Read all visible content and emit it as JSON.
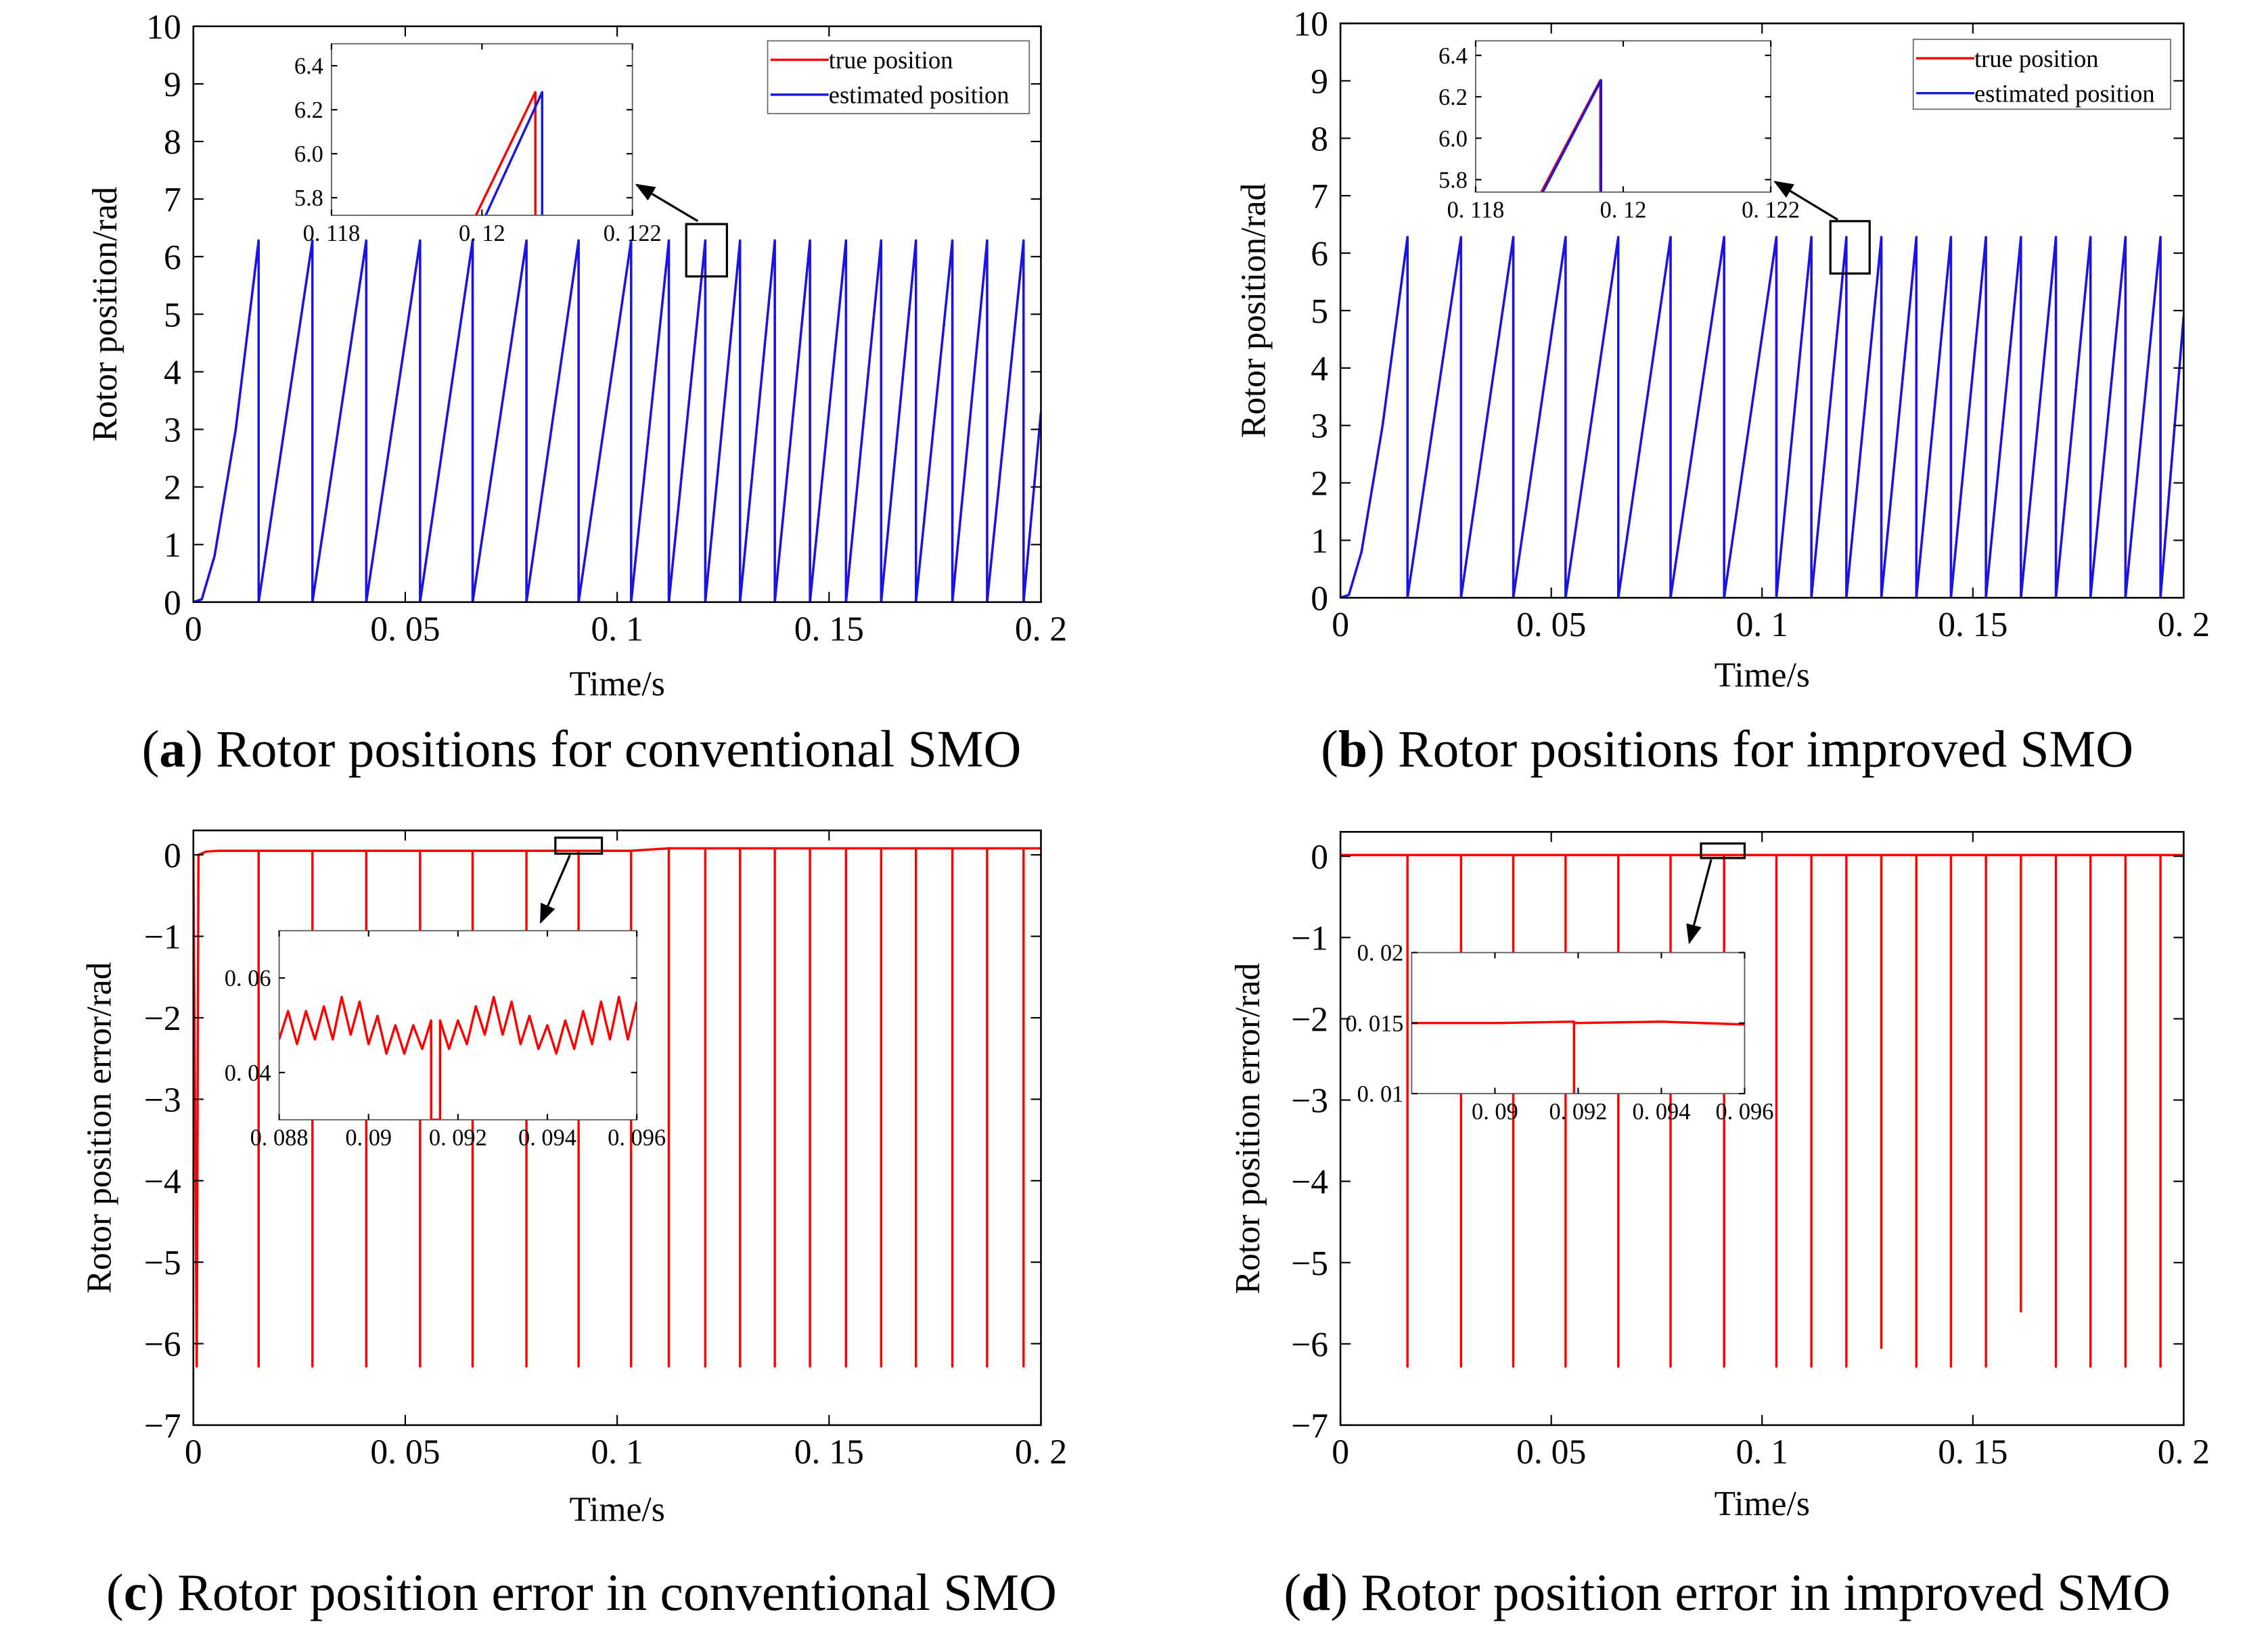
{
  "chart_data": [
    {
      "type": "line",
      "caption_parts": [
        "(",
        "a",
        ") Rotor positions for conventional SMO"
      ],
      "xlabel": "Time/s",
      "ylabel": "Rotor position/rad",
      "xlim": [
        0,
        0.2
      ],
      "ylim": [
        0,
        10
      ],
      "xticks": [
        0,
        {
          "value": 0.05,
          "label": "0. 05"
        },
        {
          "value": 0.1,
          "label": "0. 1"
        },
        {
          "value": 0.15,
          "label": "0. 15"
        },
        {
          "value": 0.2,
          "label": "0. 2"
        }
      ],
      "yticks": [
        0,
        1,
        2,
        3,
        4,
        5,
        6,
        7,
        8,
        9,
        10
      ],
      "legend": "upper right",
      "x": [
        0,
        0.002,
        0.005,
        0.01,
        0.0154,
        0.0154,
        0.0281,
        0.0281,
        0.0408,
        0.0408,
        0.0535,
        0.0535,
        0.0659,
        0.0659,
        0.0786,
        0.0786,
        0.0909,
        0.0909,
        0.1033,
        0.1033,
        0.1122,
        0.1122,
        0.1208,
        0.1208,
        0.129,
        0.129,
        0.1372,
        0.1372,
        0.1455,
        0.1455,
        0.154,
        0.154,
        0.1623,
        0.1623,
        0.1705,
        0.1705,
        0.1791,
        0.1791,
        0.1873,
        0.1873,
        0.1959,
        0.1959,
        0.2
      ],
      "series": [
        {
          "name": "true position",
          "color": "#ff0000",
          "values": [
            0,
            0.05,
            0.8,
            3.0,
            6.28,
            0,
            6.28,
            0,
            6.28,
            0,
            6.28,
            0,
            6.28,
            0,
            6.28,
            0,
            6.28,
            0,
            6.28,
            0,
            6.28,
            0,
            6.28,
            0,
            6.28,
            0,
            6.28,
            0,
            6.28,
            0,
            6.28,
            0,
            6.28,
            0,
            6.28,
            0,
            6.28,
            0,
            6.28,
            0,
            6.28,
            0,
            3.3
          ]
        },
        {
          "name": "estimated position",
          "color": "#1515e6",
          "values": [
            0,
            0.05,
            0.8,
            3.0,
            6.28,
            0,
            6.28,
            0,
            6.28,
            0,
            6.28,
            0,
            6.28,
            0,
            6.28,
            0,
            6.28,
            0,
            6.28,
            0,
            6.28,
            0,
            6.28,
            0,
            6.28,
            0,
            6.28,
            0,
            6.28,
            0,
            6.28,
            0,
            6.28,
            0,
            6.28,
            0,
            6.28,
            0,
            6.28,
            0,
            6.28,
            0,
            3.3
          ]
        }
      ],
      "inset": {
        "xlim": [
          0.118,
          0.122
        ],
        "ylim": [
          5.72,
          6.5
        ],
        "xticks": [
          {
            "value": 0.118,
            "label": "0. 118"
          },
          {
            "value": 0.12,
            "label": "0. 12"
          },
          {
            "value": 0.122,
            "label": "0. 122"
          }
        ],
        "yticks": [
          5.8,
          {
            "value": 6.0,
            "label": "6.0"
          },
          6.2,
          6.4
        ],
        "series": [
          {
            "color": "#ff0000",
            "x": [
              0.11992,
              0.12071,
              0.12071
            ],
            "values": [
              5.72,
              6.28,
              5.72
            ]
          },
          {
            "color": "#1515e6",
            "x": [
              0.12005,
              0.1208,
              0.1208
            ],
            "values": [
              5.72,
              6.28,
              5.72
            ]
          }
        ]
      }
    },
    {
      "type": "line",
      "caption_parts": [
        "(",
        "b",
        ") Rotor positions for improved SMO"
      ],
      "xlabel": "Time/s",
      "ylabel": "Rotor position/rad",
      "xlim": [
        0,
        0.2
      ],
      "ylim": [
        0,
        10
      ],
      "xticks": [
        0,
        {
          "value": 0.05,
          "label": "0. 05"
        },
        {
          "value": 0.1,
          "label": "0. 1"
        },
        {
          "value": 0.15,
          "label": "0. 15"
        },
        {
          "value": 0.2,
          "label": "0. 2"
        }
      ],
      "yticks": [
        0,
        1,
        2,
        3,
        4,
        5,
        6,
        7,
        8,
        9,
        10
      ],
      "legend": "upper right",
      "x": [
        0,
        0.002,
        0.005,
        0.01,
        0.0159,
        0.0159,
        0.0286,
        0.0286,
        0.041,
        0.041,
        0.0534,
        0.0534,
        0.0659,
        0.0659,
        0.0783,
        0.0783,
        0.091,
        0.091,
        0.1034,
        0.1034,
        0.1117,
        0.1117,
        0.12,
        0.12,
        0.1283,
        0.1283,
        0.1366,
        0.1366,
        0.1448,
        0.1448,
        0.1531,
        0.1531,
        0.1614,
        0.1614,
        0.1697,
        0.1697,
        0.1779,
        0.1779,
        0.1862,
        0.1862,
        0.1945,
        0.1945,
        0.2
      ],
      "series": [
        {
          "name": "true position",
          "color": "#ff0000",
          "values": [
            0,
            0.05,
            0.8,
            3.0,
            6.28,
            0,
            6.28,
            0,
            6.28,
            0,
            6.28,
            0,
            6.28,
            0,
            6.28,
            0,
            6.28,
            0,
            6.28,
            0,
            6.28,
            0,
            6.28,
            0,
            6.28,
            0,
            6.28,
            0,
            6.28,
            0,
            6.28,
            0,
            6.28,
            0,
            6.28,
            0,
            6.28,
            0,
            6.28,
            0,
            6.28,
            0,
            4.9
          ]
        },
        {
          "name": "estimated position",
          "color": "#1515e6",
          "values": [
            0,
            0.05,
            0.8,
            3.0,
            6.28,
            0,
            6.28,
            0,
            6.28,
            0,
            6.28,
            0,
            6.28,
            0,
            6.28,
            0,
            6.28,
            0,
            6.28,
            0,
            6.28,
            0,
            6.28,
            0,
            6.28,
            0,
            6.28,
            0,
            6.28,
            0,
            6.28,
            0,
            6.28,
            0,
            6.28,
            0,
            6.28,
            0,
            6.28,
            0,
            6.28,
            0,
            4.9
          ]
        }
      ],
      "inset": {
        "xlim": [
          0.118,
          0.122
        ],
        "ylim": [
          5.74,
          6.47
        ],
        "xticks": [
          {
            "value": 0.118,
            "label": "0. 118"
          },
          {
            "value": 0.12,
            "label": "0. 12"
          },
          {
            "value": 0.122,
            "label": "0. 122"
          }
        ],
        "yticks": [
          5.8,
          {
            "value": 6.0,
            "label": "6.0"
          },
          6.2,
          6.4
        ],
        "series": [
          {
            "color": "#ff0000",
            "x": [
              0.11889,
              0.11969,
              0.11969
            ],
            "values": [
              5.74,
              6.28,
              5.74
            ]
          },
          {
            "color": "#1515e6",
            "x": [
              0.11891,
              0.1197,
              0.1197
            ],
            "values": [
              5.74,
              6.28,
              5.74
            ]
          }
        ]
      }
    },
    {
      "type": "line",
      "caption_parts": [
        "(",
        "c",
        ") Rotor position error in conventional SMO"
      ],
      "xlabel": "Time/s",
      "ylabel": "Rotor position error/rad",
      "xlim": [
        0,
        0.2
      ],
      "ylim": [
        -7,
        0.3
      ],
      "xticks": [
        0,
        {
          "value": 0.05,
          "label": "0. 05"
        },
        {
          "value": 0.1,
          "label": "0. 1"
        },
        {
          "value": 0.15,
          "label": "0. 15"
        },
        {
          "value": 0.2,
          "label": "0. 2"
        }
      ],
      "yticks": [
        0,
        {
          "value": -1,
          "label": "−1"
        },
        {
          "value": -2,
          "label": "−2"
        },
        {
          "value": -3,
          "label": "−3"
        },
        {
          "value": -4,
          "label": "−4"
        },
        {
          "value": -5,
          "label": "−5"
        },
        {
          "value": -6,
          "label": "−6"
        },
        {
          "value": -7,
          "label": "−7"
        }
      ],
      "x": [
        0,
        0.0008,
        0.0012,
        0.003,
        0.006,
        0.0154,
        0.0154,
        0.0154,
        0.0281,
        0.0281,
        0.0281,
        0.0408,
        0.0408,
        0.0408,
        0.0535,
        0.0535,
        0.0535,
        0.0659,
        0.0659,
        0.0659,
        0.0786,
        0.0786,
        0.0786,
        0.0909,
        0.0909,
        0.0909,
        0.1033,
        0.1033,
        0.1033,
        0.1122,
        0.1122,
        0.1122,
        0.1208,
        0.1208,
        0.1208,
        0.129,
        0.129,
        0.129,
        0.1372,
        0.1372,
        0.1372,
        0.1455,
        0.1455,
        0.1455,
        0.154,
        0.154,
        0.154,
        0.1623,
        0.1623,
        0.1623,
        0.1705,
        0.1705,
        0.1705,
        0.1791,
        0.1791,
        0.1791,
        0.1873,
        0.1873,
        0.1873,
        0.1959,
        0.1959,
        0.1959,
        0.2
      ],
      "series": [
        {
          "color": "#ff0000",
          "values": [
            0,
            -6.28,
            0,
            0.04,
            0.05,
            0.05,
            -6.28,
            0.05,
            0.05,
            -6.28,
            0.05,
            0.05,
            -6.28,
            0.05,
            0.05,
            -6.28,
            0.05,
            0.05,
            -6.28,
            0.05,
            0.05,
            -6.28,
            0.05,
            0.05,
            -6.28,
            0.05,
            0.05,
            -6.28,
            0.05,
            0.08,
            -6.28,
            0.08,
            0.08,
            -6.28,
            0.08,
            0.08,
            -6.28,
            0.08,
            0.08,
            -6.28,
            0.08,
            0.08,
            -6.28,
            0.08,
            0.08,
            -6.28,
            0.08,
            0.08,
            -6.28,
            0.08,
            0.08,
            -6.28,
            0.08,
            0.08,
            -6.28,
            0.08,
            0.08,
            -6.28,
            0.08,
            0.08,
            -6.28,
            0.08,
            0.08
          ]
        }
      ],
      "inset": {
        "xlim": [
          0.088,
          0.096
        ],
        "ylim": [
          0.03,
          0.07
        ],
        "xticks": [
          {
            "value": 0.088,
            "label": "0. 088"
          },
          {
            "value": 0.09,
            "label": "0. 09"
          },
          {
            "value": 0.092,
            "label": "0. 092"
          },
          {
            "value": 0.094,
            "label": "0. 094"
          },
          {
            "value": 0.096,
            "label": "0. 096"
          }
        ],
        "yticks": [
          {
            "value": 0.04,
            "label": "0. 04"
          },
          {
            "value": 0.06,
            "label": "0. 06"
          }
        ],
        "series": [
          {
            "color": "#ff0000",
            "x": [
              0.088,
              0.0882,
              0.0884,
              0.0886,
              0.0888,
              0.089,
              0.0892,
              0.0894,
              0.0896,
              0.0898,
              0.09,
              0.0902,
              0.0904,
              0.0906,
              0.0908,
              0.091,
              0.0912,
              0.0914,
              0.0914,
              0.0916,
              0.0916,
              0.0918,
              0.092,
              0.0922,
              0.0924,
              0.0926,
              0.0928,
              0.093,
              0.0932,
              0.0934,
              0.0936,
              0.0938,
              0.094,
              0.0942,
              0.0944,
              0.0946,
              0.0948,
              0.095,
              0.0952,
              0.0954,
              0.0956,
              0.0958,
              0.096
            ],
            "values": [
              0.047,
              0.053,
              0.046,
              0.053,
              0.047,
              0.054,
              0.047,
              0.056,
              0.048,
              0.055,
              0.046,
              0.052,
              0.044,
              0.05,
              0.044,
              0.05,
              0.045,
              0.051,
              0.03,
              0.03,
              0.051,
              0.045,
              0.051,
              0.046,
              0.054,
              0.048,
              0.056,
              0.048,
              0.055,
              0.046,
              0.052,
              0.045,
              0.05,
              0.044,
              0.051,
              0.045,
              0.053,
              0.046,
              0.055,
              0.047,
              0.056,
              0.047,
              0.055
            ]
          }
        ]
      }
    },
    {
      "type": "line",
      "caption_parts": [
        "(",
        "d",
        ") Rotor position error in improved SMO"
      ],
      "xlabel": "Time/s",
      "ylabel": "Rotor position error/rad",
      "xlim": [
        0,
        0.2
      ],
      "ylim": [
        -7,
        0.3
      ],
      "xticks": [
        0,
        {
          "value": 0.05,
          "label": "0. 05"
        },
        {
          "value": 0.1,
          "label": "0. 1"
        },
        {
          "value": 0.15,
          "label": "0. 15"
        },
        {
          "value": 0.2,
          "label": "0. 2"
        }
      ],
      "yticks": [
        0,
        {
          "value": -1,
          "label": "−1"
        },
        {
          "value": -2,
          "label": "−2"
        },
        {
          "value": -3,
          "label": "−3"
        },
        {
          "value": -4,
          "label": "−4"
        },
        {
          "value": -5,
          "label": "−5"
        },
        {
          "value": -6,
          "label": "−6"
        },
        {
          "value": -7,
          "label": "−7"
        }
      ],
      "x": [
        0,
        0.0159,
        0.0159,
        0.0159,
        0.0286,
        0.0286,
        0.0286,
        0.041,
        0.041,
        0.041,
        0.0534,
        0.0534,
        0.0534,
        0.0659,
        0.0659,
        0.0659,
        0.0783,
        0.0783,
        0.0783,
        0.091,
        0.091,
        0.091,
        0.1034,
        0.1034,
        0.1034,
        0.1117,
        0.1117,
        0.1117,
        0.12,
        0.12,
        0.12,
        0.1283,
        0.1283,
        0.1283,
        0.1366,
        0.1366,
        0.1366,
        0.1448,
        0.1448,
        0.1448,
        0.1531,
        0.1531,
        0.1531,
        0.1614,
        0.1614,
        0.1614,
        0.1697,
        0.1697,
        0.1697,
        0.1779,
        0.1779,
        0.1779,
        0.1862,
        0.1862,
        0.1862,
        0.1945,
        0.1945,
        0.1945,
        0.2
      ],
      "series": [
        {
          "color": "#ff0000",
          "values": [
            0.015,
            0.015,
            -6.28,
            0.015,
            0.015,
            -6.28,
            0.015,
            0.015,
            -6.28,
            0.015,
            0.015,
            -6.28,
            0.015,
            0.015,
            -6.28,
            0.015,
            0.015,
            -6.28,
            0.015,
            0.015,
            -6.28,
            0.015,
            0.015,
            -6.28,
            0.015,
            0.015,
            -6.28,
            0.015,
            0.015,
            -6.28,
            0.015,
            0.015,
            -6.05,
            0.015,
            0.015,
            -6.28,
            0.015,
            0.015,
            -6.28,
            0.015,
            0.015,
            -6.28,
            0.015,
            0.015,
            -5.6,
            0.015,
            0.015,
            -6.28,
            0.015,
            0.015,
            -6.28,
            0.015,
            0.015,
            -6.28,
            0.015,
            0.015,
            -6.28,
            0.015,
            0.015
          ]
        }
      ],
      "inset": {
        "xlim": [
          0.088,
          0.096
        ],
        "ylim": [
          0.01,
          0.02
        ],
        "xticks": [
          {
            "value": 0.09,
            "label": "0. 09"
          },
          {
            "value": 0.092,
            "label": "0. 092"
          },
          {
            "value": 0.094,
            "label": "0. 094"
          },
          {
            "value": 0.096,
            "label": "0. 096"
          }
        ],
        "yticks": [
          {
            "value": 0.01,
            "label": "0. 01"
          },
          {
            "value": 0.015,
            "label": "0. 015"
          },
          {
            "value": 0.02,
            "label": "0. 02"
          }
        ],
        "series": [
          {
            "color": "#ff0000",
            "x": [
              0.088,
              0.09,
              0.0919,
              0.0919,
              0.0919,
              0.094,
              0.096
            ],
            "values": [
              0.015,
              0.015,
              0.0151,
              0.01,
              0.015,
              0.0151,
              0.0149
            ]
          }
        ]
      }
    }
  ]
}
